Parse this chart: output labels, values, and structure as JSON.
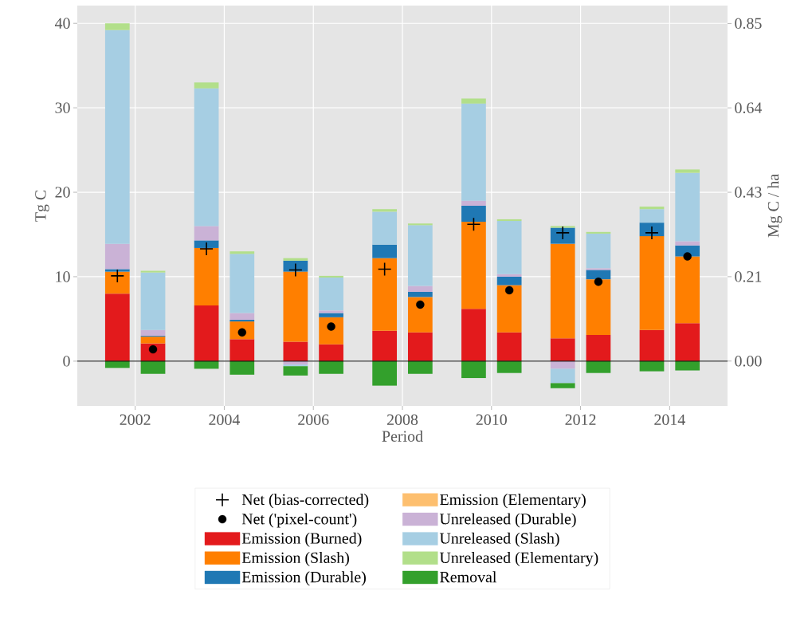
{
  "chart_data": {
    "type": "bar",
    "stacked": true,
    "xlabel": "Period",
    "ylabel": "Tg C",
    "y2label": "Mg C / ha",
    "x": [
      2001.6,
      2002.4,
      2003.6,
      2004.4,
      2005.6,
      2006.4,
      2007.6,
      2008.4,
      2009.6,
      2010.4,
      2011.6,
      2012.4,
      2013.6,
      2014.4
    ],
    "series": [
      {
        "name": "Net (bias-corrected)",
        "type": "scatter",
        "marker": "cross",
        "color": "#000000",
        "x": [
          2001.6,
          2003.6,
          2005.6,
          2007.6,
          2009.6,
          2011.6,
          2013.6
        ],
        "values": [
          10.1,
          13.3,
          10.8,
          10.9,
          16.2,
          15.2,
          15.2
        ]
      },
      {
        "name": "Net ('pixel-count')",
        "type": "scatter",
        "marker": "circle",
        "color": "#000000",
        "x": [
          2002.4,
          2004.4,
          2006.4,
          2008.4,
          2010.4,
          2012.4,
          2014.4
        ],
        "values": [
          1.4,
          3.4,
          4.1,
          6.7,
          8.4,
          9.4,
          12.4
        ]
      },
      {
        "name": "Emission (Burned)",
        "color": "#e31a1c",
        "values": [
          8.0,
          2.1,
          6.6,
          2.6,
          2.3,
          2.0,
          3.6,
          3.4,
          6.2,
          3.4,
          2.7,
          3.1,
          3.7,
          4.5
        ]
      },
      {
        "name": "Emission (Slash)",
        "color": "#ff7f00",
        "values": [
          2.6,
          0.8,
          6.8,
          2.1,
          8.3,
          3.2,
          8.6,
          4.2,
          10.3,
          5.6,
          11.2,
          6.6,
          11.1,
          7.9
        ]
      },
      {
        "name": "Emission (Durable)",
        "color": "#1f78b4",
        "values": [
          0.3,
          0.1,
          0.9,
          0.2,
          1.3,
          0.5,
          1.6,
          0.6,
          1.9,
          1.0,
          1.9,
          1.1,
          1.6,
          1.3
        ]
      },
      {
        "name": "Emission (Elementary)",
        "color": "#fdbf6f",
        "values": [
          0,
          0,
          0,
          0,
          0,
          0,
          0,
          0,
          0,
          0,
          0,
          0,
          0,
          0
        ]
      },
      {
        "name": "Unreleased (Durable)",
        "color": "#cab2d6",
        "values": [
          3.0,
          0.7,
          1.7,
          0.8,
          -0.4,
          0.3,
          0,
          0.7,
          0.6,
          0.3,
          -0.9,
          0.2,
          0,
          0.5
        ]
      },
      {
        "name": "Unreleased (Slash)",
        "color": "#a6cee3",
        "values": [
          25.3,
          6.8,
          16.3,
          7.0,
          -0.2,
          3.9,
          3.9,
          7.2,
          11.5,
          6.3,
          -1.7,
          4.1,
          1.6,
          8.1
        ]
      },
      {
        "name": "Unreleased (Elementary)",
        "color": "#b2df8a",
        "values": [
          0.8,
          0.2,
          0.7,
          0.3,
          0.3,
          0.2,
          0.3,
          0.2,
          0.6,
          0.2,
          0.2,
          0.2,
          0.3,
          0.4
        ]
      },
      {
        "name": "Removal",
        "color": "#33a02c",
        "values": [
          -0.8,
          -1.5,
          -0.9,
          -1.6,
          -1.1,
          -1.5,
          -2.9,
          -1.5,
          -2.0,
          -1.4,
          -0.6,
          -1.4,
          -1.2,
          -1.1
        ]
      }
    ],
    "xlim": [
      2000.7,
      2015.3
    ],
    "xticks": [
      2002,
      2004,
      2006,
      2008,
      2010,
      2012,
      2014
    ],
    "ylim": [
      -5.3,
      42.1
    ],
    "yticks": [
      0,
      10,
      20,
      30,
      40
    ],
    "y2lim": [
      -0.113,
      0.895
    ],
    "y2ticks": [
      {
        "value": 0,
        "label": "0.00"
      },
      {
        "value": 0.2125,
        "label": "0.21"
      },
      {
        "value": 0.425,
        "label": "0.43"
      },
      {
        "value": 0.6375,
        "label": "0.64"
      },
      {
        "value": 0.85,
        "label": "0.85"
      }
    ],
    "ref_lines": [
      {
        "axis": "y",
        "value": 0,
        "color": "#000000"
      }
    ],
    "grid": true,
    "legend": "bottom"
  }
}
